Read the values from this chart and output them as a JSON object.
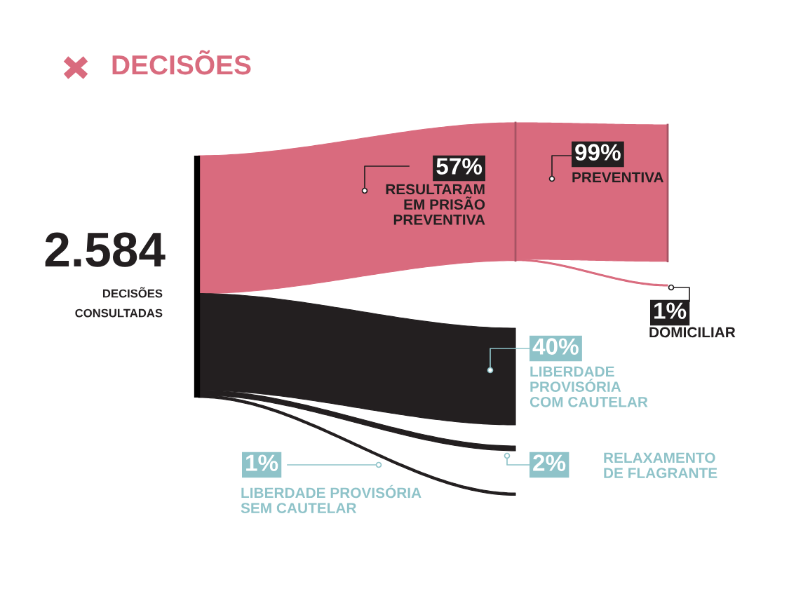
{
  "chart_data": {
    "type": "other",
    "title": "DECISÕES",
    "annotations": [
      "2.584",
      "DECISÕES",
      "CONSULTADAS"
    ],
    "categories": [
      "RESULTARAM\nEM PRISÃO\nPREVENTIVA",
      "LIBERDADE\nPROVISÓRIA\nCOM CAUTELAR",
      "RELAXAMENTO\nDE FLAGRANTE",
      "LIBERDADE PROVISÓRIA\nSEM CAUTELAR",
      "PREVENTIVA",
      "DOMICILIAR"
    ],
    "series": [
      {
        "values": [
          57,
          40,
          2,
          1,
          null,
          null
        ],
        "colors": [
          "#d96b7e",
          "#231f20",
          "#231f20",
          "#231f20",
          null,
          null
        ],
        "value_labels": [
          "57%",
          "40%",
          "2%",
          "1%",
          null,
          null
        ]
      },
      {
        "values": [
          null,
          null,
          null,
          null,
          99,
          1
        ],
        "colors": [
          null,
          null,
          null,
          null,
          "#d96b7e",
          "#d96b7e"
        ],
        "value_labels": [
          null,
          null,
          null,
          null,
          "99%",
          "1%"
        ]
      }
    ]
  }
}
